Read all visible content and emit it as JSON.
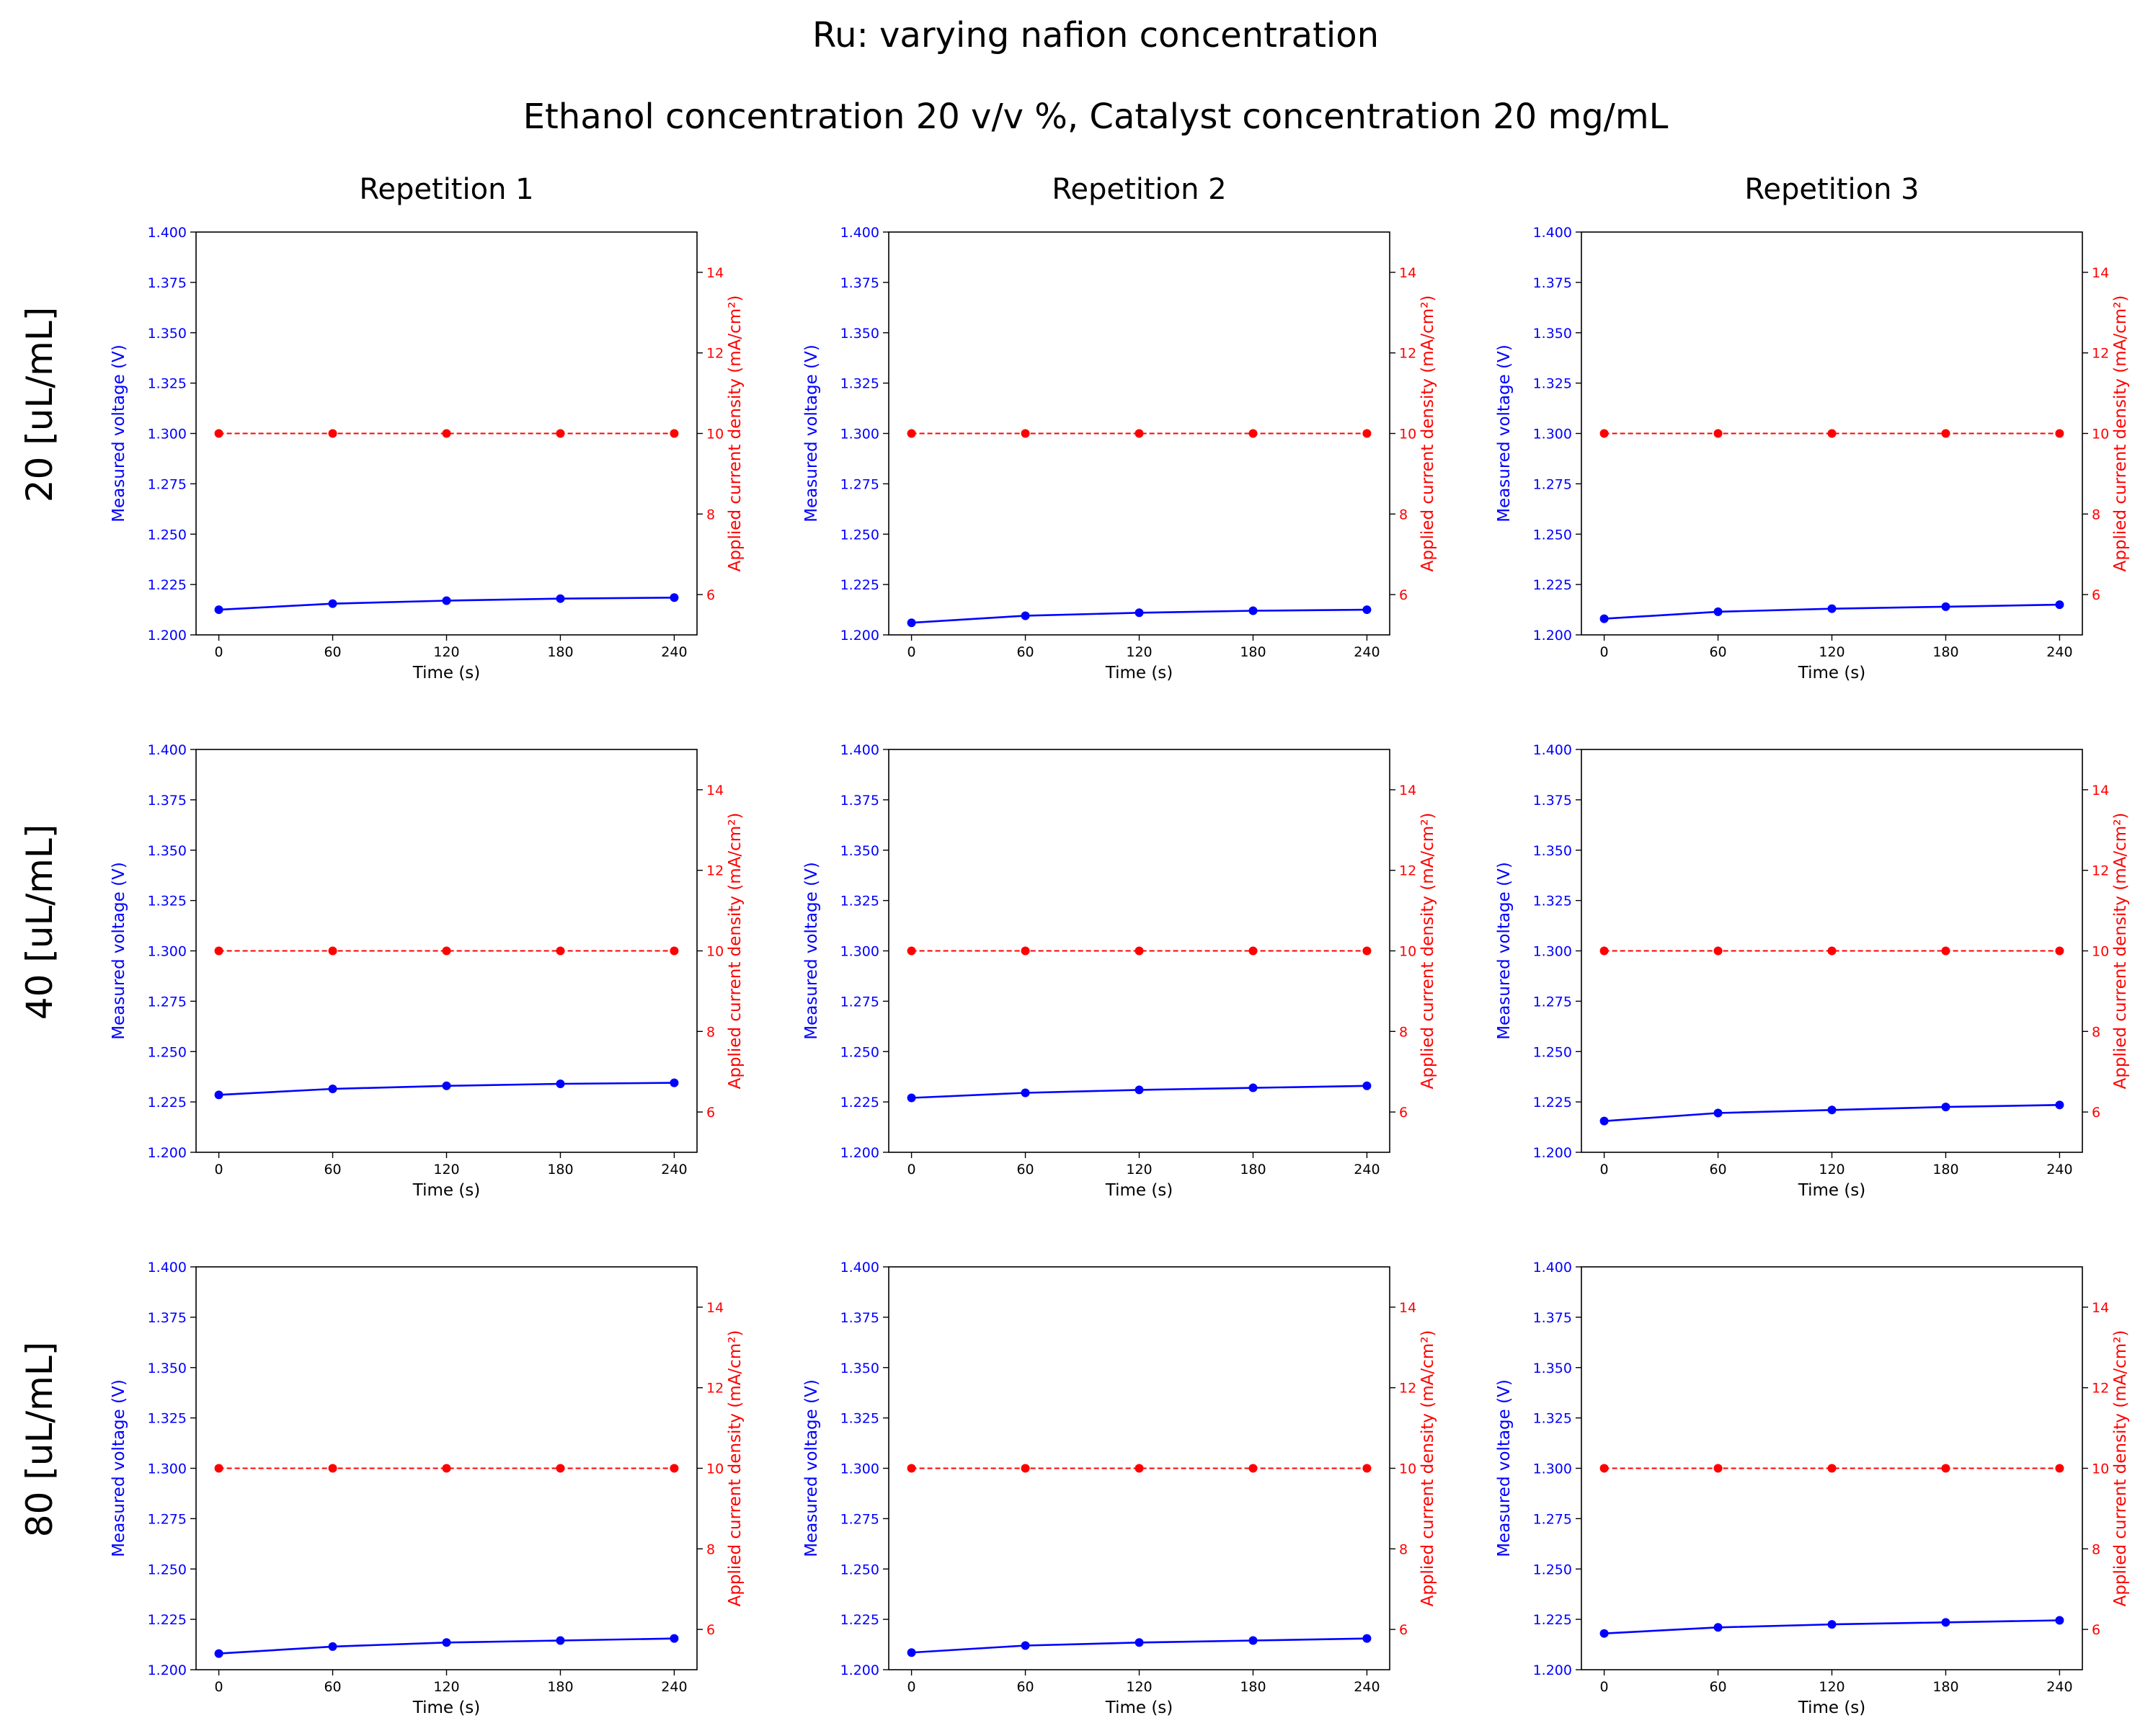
{
  "figure": {
    "title": "Ru: varying nafion concentration",
    "subtitle": "Ethanol concentration 20 v/v %, Catalyst concentration 20 mg/mL",
    "column_titles": [
      "Repetition 1",
      "Repetition 2",
      "Repetition 3"
    ],
    "row_titles": [
      "20 [uL/mL]",
      "40 [uL/mL]",
      "80 [uL/mL]"
    ],
    "colors": {
      "voltage": "#0000ff",
      "current": "#ff0000"
    }
  },
  "chart_data": [
    {
      "type": "line",
      "panel": "20 [uL/mL] / Repetition 1",
      "x": [
        0,
        60,
        120,
        180,
        240
      ],
      "xlabel": "Time (s)",
      "ylabel": "Measured voltage (V)",
      "y2label": "Applied current density (mA/cm²)",
      "ylim": [
        1.2,
        1.4
      ],
      "y2lim": [
        5,
        15
      ],
      "xticks": [
        0,
        60,
        120,
        180,
        240
      ],
      "yticks": [
        1.2,
        1.225,
        1.25,
        1.275,
        1.3,
        1.325,
        1.35,
        1.375,
        1.4
      ],
      "y2ticks": [
        6,
        8,
        10,
        12,
        14
      ],
      "series": [
        {
          "values": [
            1.2125,
            1.2155,
            1.217,
            1.218,
            1.2185
          ]
        },
        {
          "axis": "right",
          "values": [
            10,
            10,
            10,
            10,
            10
          ]
        }
      ]
    },
    {
      "type": "line",
      "panel": "20 [uL/mL] / Repetition 2",
      "x": [
        0,
        60,
        120,
        180,
        240
      ],
      "xlabel": "Time (s)",
      "ylabel": "Measured voltage (V)",
      "y2label": "Applied current density (mA/cm²)",
      "ylim": [
        1.2,
        1.4
      ],
      "y2lim": [
        5,
        15
      ],
      "xticks": [
        0,
        60,
        120,
        180,
        240
      ],
      "yticks": [
        1.2,
        1.225,
        1.25,
        1.275,
        1.3,
        1.325,
        1.35,
        1.375,
        1.4
      ],
      "y2ticks": [
        6,
        8,
        10,
        12,
        14
      ],
      "series": [
        {
          "values": [
            1.206,
            1.2095,
            1.211,
            1.212,
            1.2125
          ]
        },
        {
          "axis": "right",
          "values": [
            10,
            10,
            10,
            10,
            10
          ]
        }
      ]
    },
    {
      "type": "line",
      "panel": "20 [uL/mL] / Repetition 3",
      "x": [
        0,
        60,
        120,
        180,
        240
      ],
      "xlabel": "Time (s)",
      "ylabel": "Measured voltage (V)",
      "y2label": "Applied current density (mA/cm²)",
      "ylim": [
        1.2,
        1.4
      ],
      "y2lim": [
        5,
        15
      ],
      "xticks": [
        0,
        60,
        120,
        180,
        240
      ],
      "yticks": [
        1.2,
        1.225,
        1.25,
        1.275,
        1.3,
        1.325,
        1.35,
        1.375,
        1.4
      ],
      "y2ticks": [
        6,
        8,
        10,
        12,
        14
      ],
      "series": [
        {
          "values": [
            1.208,
            1.2115,
            1.213,
            1.214,
            1.215
          ]
        },
        {
          "axis": "right",
          "values": [
            10,
            10,
            10,
            10,
            10
          ]
        }
      ]
    },
    {
      "type": "line",
      "panel": "40 [uL/mL] / Repetition 1",
      "x": [
        0,
        60,
        120,
        180,
        240
      ],
      "xlabel": "Time (s)",
      "ylabel": "Measured voltage (V)",
      "y2label": "Applied current density (mA/cm²)",
      "ylim": [
        1.2,
        1.4
      ],
      "y2lim": [
        5,
        15
      ],
      "xticks": [
        0,
        60,
        120,
        180,
        240
      ],
      "yticks": [
        1.2,
        1.225,
        1.25,
        1.275,
        1.3,
        1.325,
        1.35,
        1.375,
        1.4
      ],
      "y2ticks": [
        6,
        8,
        10,
        12,
        14
      ],
      "series": [
        {
          "values": [
            1.2285,
            1.2315,
            1.233,
            1.234,
            1.2345
          ]
        },
        {
          "axis": "right",
          "values": [
            10,
            10,
            10,
            10,
            10
          ]
        }
      ]
    },
    {
      "type": "line",
      "panel": "40 [uL/mL] / Repetition 2",
      "x": [
        0,
        60,
        120,
        180,
        240
      ],
      "xlabel": "Time (s)",
      "ylabel": "Measured voltage (V)",
      "y2label": "Applied current density (mA/cm²)",
      "ylim": [
        1.2,
        1.4
      ],
      "y2lim": [
        5,
        15
      ],
      "xticks": [
        0,
        60,
        120,
        180,
        240
      ],
      "yticks": [
        1.2,
        1.225,
        1.25,
        1.275,
        1.3,
        1.325,
        1.35,
        1.375,
        1.4
      ],
      "y2ticks": [
        6,
        8,
        10,
        12,
        14
      ],
      "series": [
        {
          "values": [
            1.227,
            1.2295,
            1.231,
            1.232,
            1.233
          ]
        },
        {
          "axis": "right",
          "values": [
            10,
            10,
            10,
            10,
            10
          ]
        }
      ]
    },
    {
      "type": "line",
      "panel": "40 [uL/mL] / Repetition 3",
      "x": [
        0,
        60,
        120,
        180,
        240
      ],
      "xlabel": "Time (s)",
      "ylabel": "Measured voltage (V)",
      "y2label": "Applied current density (mA/cm²)",
      "ylim": [
        1.2,
        1.4
      ],
      "y2lim": [
        5,
        15
      ],
      "xticks": [
        0,
        60,
        120,
        180,
        240
      ],
      "yticks": [
        1.2,
        1.225,
        1.25,
        1.275,
        1.3,
        1.325,
        1.35,
        1.375,
        1.4
      ],
      "y2ticks": [
        6,
        8,
        10,
        12,
        14
      ],
      "series": [
        {
          "values": [
            1.2155,
            1.2195,
            1.221,
            1.2225,
            1.2235
          ]
        },
        {
          "axis": "right",
          "values": [
            10,
            10,
            10,
            10,
            10
          ]
        }
      ]
    },
    {
      "type": "line",
      "panel": "80 [uL/mL] / Repetition 1",
      "x": [
        0,
        60,
        120,
        180,
        240
      ],
      "xlabel": "Time (s)",
      "ylabel": "Measured voltage (V)",
      "y2label": "Applied current density (mA/cm²)",
      "ylim": [
        1.2,
        1.4
      ],
      "y2lim": [
        5,
        15
      ],
      "xticks": [
        0,
        60,
        120,
        180,
        240
      ],
      "yticks": [
        1.2,
        1.225,
        1.25,
        1.275,
        1.3,
        1.325,
        1.35,
        1.375,
        1.4
      ],
      "y2ticks": [
        6,
        8,
        10,
        12,
        14
      ],
      "series": [
        {
          "values": [
            1.208,
            1.2115,
            1.2135,
            1.2145,
            1.2155
          ]
        },
        {
          "axis": "right",
          "values": [
            10,
            10,
            10,
            10,
            10
          ]
        }
      ]
    },
    {
      "type": "line",
      "panel": "80 [uL/mL] / Repetition 2",
      "x": [
        0,
        60,
        120,
        180,
        240
      ],
      "xlabel": "Time (s)",
      "ylabel": "Measured voltage (V)",
      "y2label": "Applied current density (mA/cm²)",
      "ylim": [
        1.2,
        1.4
      ],
      "y2lim": [
        5,
        15
      ],
      "xticks": [
        0,
        60,
        120,
        180,
        240
      ],
      "yticks": [
        1.2,
        1.225,
        1.25,
        1.275,
        1.3,
        1.325,
        1.35,
        1.375,
        1.4
      ],
      "y2ticks": [
        6,
        8,
        10,
        12,
        14
      ],
      "series": [
        {
          "values": [
            1.2085,
            1.212,
            1.2135,
            1.2145,
            1.2155
          ]
        },
        {
          "axis": "right",
          "values": [
            10,
            10,
            10,
            10,
            10
          ]
        }
      ]
    },
    {
      "type": "line",
      "panel": "80 [uL/mL] / Repetition 3",
      "x": [
        0,
        60,
        120,
        180,
        240
      ],
      "xlabel": "Time (s)",
      "ylabel": "Measured voltage (V)",
      "y2label": "Applied current density (mA/cm²)",
      "ylim": [
        1.2,
        1.4
      ],
      "y2lim": [
        5,
        15
      ],
      "xticks": [
        0,
        60,
        120,
        180,
        240
      ],
      "yticks": [
        1.2,
        1.225,
        1.25,
        1.275,
        1.3,
        1.325,
        1.35,
        1.375,
        1.4
      ],
      "y2ticks": [
        6,
        8,
        10,
        12,
        14
      ],
      "series": [
        {
          "values": [
            1.218,
            1.221,
            1.2225,
            1.2235,
            1.2245
          ]
        },
        {
          "axis": "right",
          "values": [
            10,
            10,
            10,
            10,
            10
          ]
        }
      ]
    }
  ]
}
